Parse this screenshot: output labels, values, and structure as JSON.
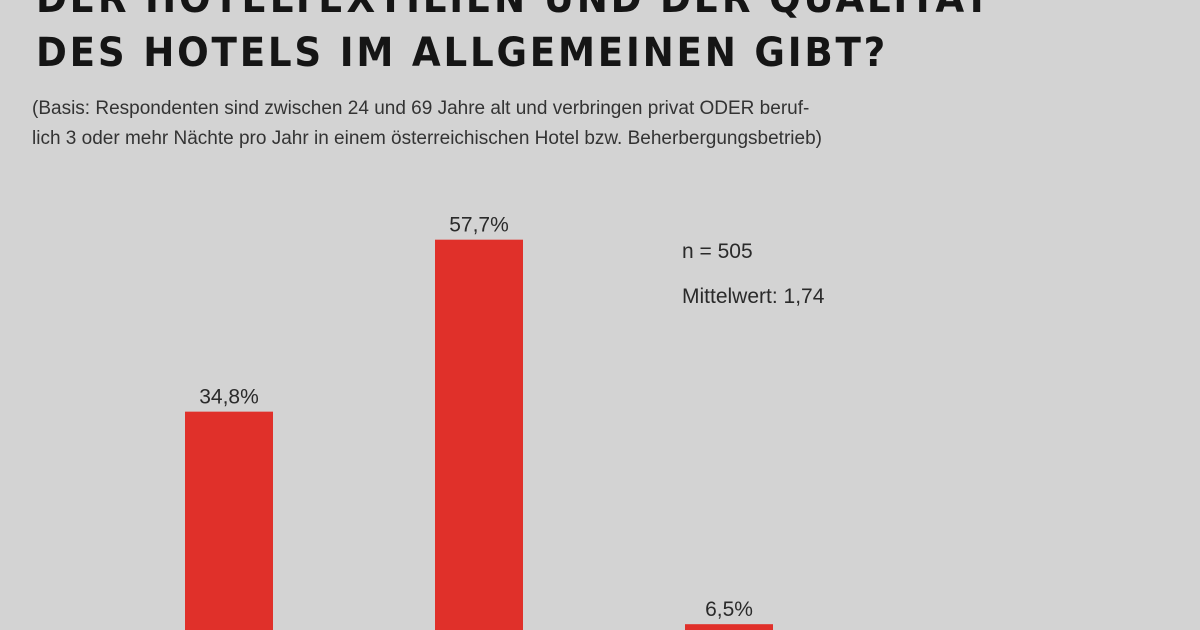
{
  "title_lines": [
    "DER HOTELTEXTILIEN UND DER QUALITÄT",
    "DES HOTELS IM ALLGEMEINEN GIBT?"
  ],
  "subtitle_lines": [
    "(Basis: Respondenten sind zwischen 24 und 69 Jahre alt und verbringen privat ODER beruf-",
    "lich 3 oder mehr Nächte pro Jahr in einem österreichischen Hotel bzw. Beherbergungsbetrieb)"
  ],
  "notes": {
    "n": "n = 505",
    "mean": "Mittelwert: 1,74"
  },
  "colors": {
    "bar": "#e0302a",
    "background": "#d3d3d3"
  },
  "chart_data": {
    "type": "bar",
    "values": [
      34.8,
      57.7,
      6.5
    ],
    "data_labels": [
      "34,8%",
      "57,7%",
      "6,5%"
    ],
    "ylim": [
      0,
      100
    ],
    "grid": false
  }
}
